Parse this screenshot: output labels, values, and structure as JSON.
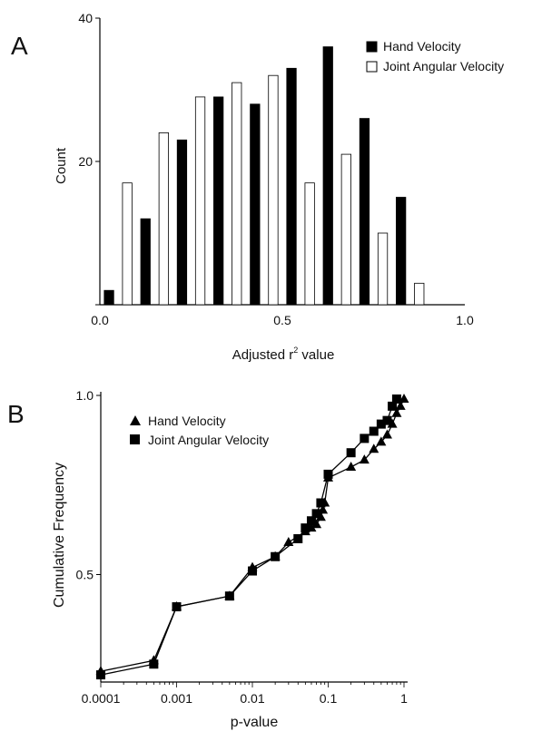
{
  "chart_data": [
    {
      "panel_label": "A",
      "type": "bar",
      "xlabel": "Adjusted r",
      "xlabel_superscript": "2",
      "xlabel_suffix": " value",
      "ylabel": "Count",
      "xlim": [
        0.0,
        1.0
      ],
      "ylim": [
        0,
        40
      ],
      "x_ticks": [
        "0.0",
        "0.5",
        "1.0"
      ],
      "y_ticks": [
        "20",
        "40"
      ],
      "bin_width": 0.1,
      "bin_starts": [
        0.0,
        0.1,
        0.2,
        0.3,
        0.4,
        0.5,
        0.6,
        0.7,
        0.8
      ],
      "series": [
        {
          "name": "Hand Velocity",
          "color": "#000000",
          "values": [
            2,
            12,
            23,
            29,
            28,
            33,
            36,
            26,
            15
          ]
        },
        {
          "name": "Joint Angular Velocity",
          "color": "#ffffff",
          "values": [
            17,
            24,
            29,
            31,
            32,
            17,
            21,
            10,
            3
          ]
        }
      ],
      "legend_position": "top-right"
    },
    {
      "panel_label": "B",
      "type": "line",
      "xlabel": "p-value",
      "ylabel": "Cumulative Frequency",
      "xscale": "log",
      "xlim": [
        0.0001,
        1
      ],
      "ylim": [
        0.2,
        1.0
      ],
      "x_ticks": [
        "0.0001",
        "0.001",
        "0.01",
        "0.1",
        "1"
      ],
      "y_ticks": [
        "0.5",
        "1.0"
      ],
      "series": [
        {
          "name": "Hand Velocity",
          "marker": "triangle",
          "points": [
            [
              0.0001,
              0.23
            ],
            [
              0.0005,
              0.26
            ],
            [
              0.001,
              0.41
            ],
            [
              0.005,
              0.44
            ],
            [
              0.01,
              0.52
            ],
            [
              0.02,
              0.55
            ],
            [
              0.03,
              0.59
            ],
            [
              0.05,
              0.62
            ],
            [
              0.06,
              0.63
            ],
            [
              0.07,
              0.64
            ],
            [
              0.08,
              0.66
            ],
            [
              0.085,
              0.68
            ],
            [
              0.09,
              0.7
            ],
            [
              0.1,
              0.77
            ],
            [
              0.2,
              0.8
            ],
            [
              0.3,
              0.82
            ],
            [
              0.4,
              0.85
            ],
            [
              0.5,
              0.87
            ],
            [
              0.6,
              0.89
            ],
            [
              0.7,
              0.92
            ],
            [
              0.8,
              0.95
            ],
            [
              0.9,
              0.97
            ],
            [
              1.0,
              0.99
            ]
          ]
        },
        {
          "name": "Joint Angular Velocity",
          "marker": "square",
          "points": [
            [
              0.0001,
              0.22
            ],
            [
              0.0005,
              0.25
            ],
            [
              0.001,
              0.41
            ],
            [
              0.005,
              0.44
            ],
            [
              0.01,
              0.51
            ],
            [
              0.02,
              0.55
            ],
            [
              0.04,
              0.6
            ],
            [
              0.05,
              0.63
            ],
            [
              0.06,
              0.65
            ],
            [
              0.07,
              0.67
            ],
            [
              0.08,
              0.7
            ],
            [
              0.1,
              0.78
            ],
            [
              0.2,
              0.84
            ],
            [
              0.3,
              0.88
            ],
            [
              0.4,
              0.9
            ],
            [
              0.5,
              0.92
            ],
            [
              0.6,
              0.93
            ],
            [
              0.7,
              0.97
            ],
            [
              0.8,
              0.99
            ]
          ]
        }
      ],
      "legend_position": "top-left"
    }
  ]
}
